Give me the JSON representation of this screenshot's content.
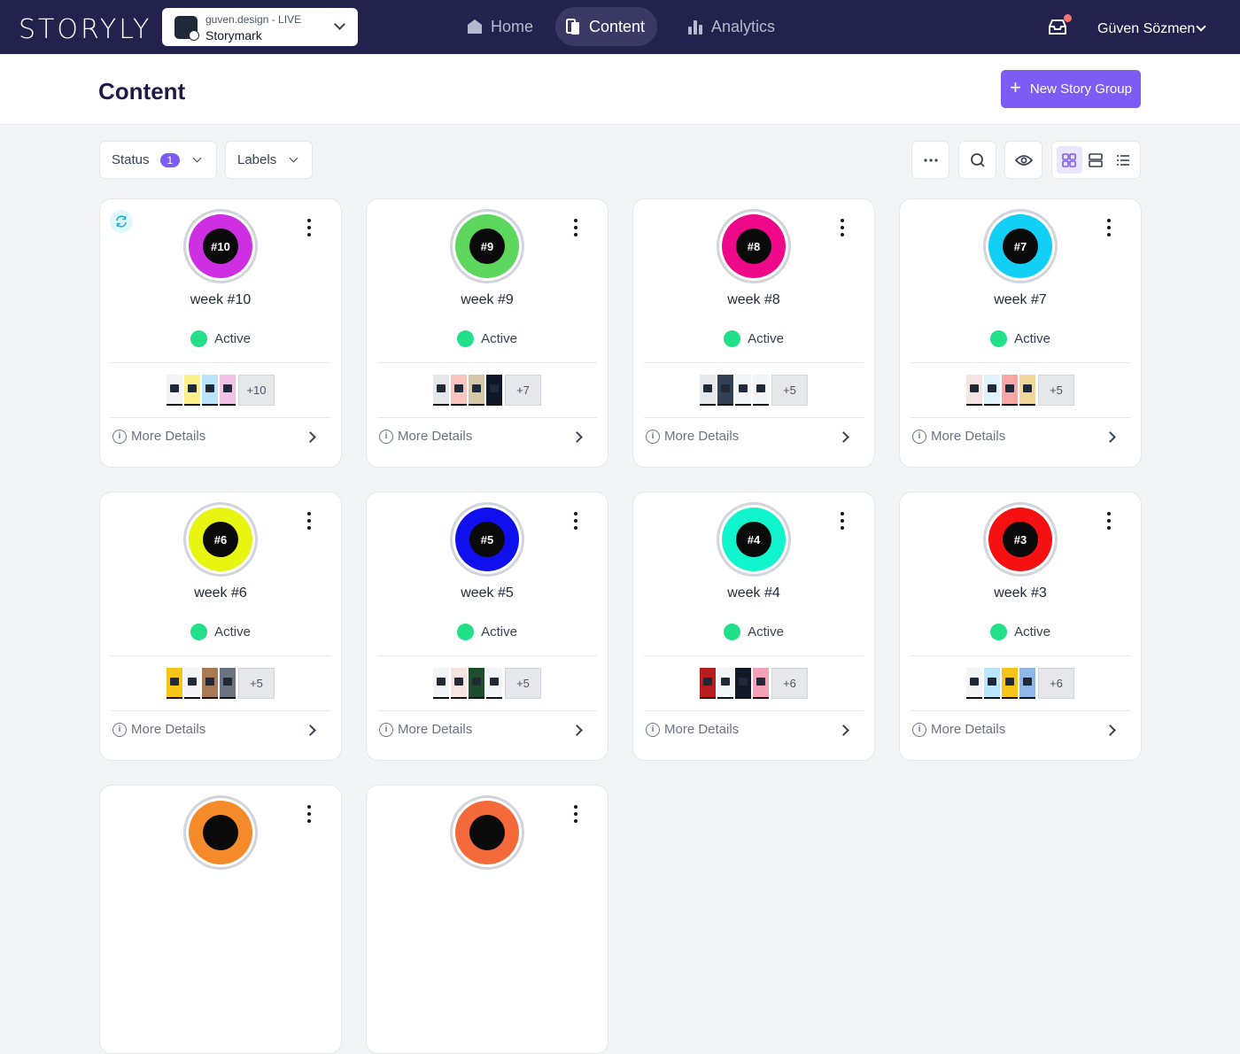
{
  "app": {
    "logo": "STORYLY",
    "selector_line1": "guven.design - LIVE",
    "selector_line2": "Storymark"
  },
  "nav": [
    {
      "label": "Home",
      "icon": "home-icon",
      "active": false
    },
    {
      "label": "Content",
      "icon": "content-icon",
      "active": true
    },
    {
      "label": "Analytics",
      "icon": "analytics-icon",
      "active": false
    }
  ],
  "user": {
    "name": "Güven Sözmen"
  },
  "page": {
    "title": "Content",
    "new_button": "New Story Group"
  },
  "filters": {
    "status_label": "Status",
    "status_count": "1",
    "labels_label": "Labels"
  },
  "cards": [
    {
      "tag": "#10",
      "name": "week #10",
      "status": "Active",
      "color": "#cf2fe3",
      "thumbs": [
        "#f3f4f6",
        "#fef08a",
        "#bae6fd",
        "#f5c2e7"
      ],
      "more": "+10",
      "details": "More Details",
      "sync": true
    },
    {
      "tag": "#9",
      "name": "week #9",
      "status": "Active",
      "color": "#5cd65c",
      "thumbs": [
        "#e5e7eb",
        "#f8c4bd",
        "#d6c7a8",
        "#0f172a"
      ],
      "more": "+7",
      "details": "More Details"
    },
    {
      "tag": "#8",
      "name": "week #8",
      "status": "Active",
      "color": "#f0088a",
      "thumbs": [
        "#e5e7eb",
        "#334155",
        "#f3f4f6",
        "#f3f4f6"
      ],
      "more": "+5",
      "details": "More Details"
    },
    {
      "tag": "#7",
      "name": "week #7",
      "status": "Active",
      "color": "#12d0f5",
      "thumbs": [
        "#f5e4e0",
        "#e0f2fe",
        "#fca5a5",
        "#f2d79c"
      ],
      "more": "+5",
      "details": "More Details"
    },
    {
      "tag": "#6",
      "name": "week #6",
      "status": "Active",
      "color": "#e8f511",
      "thumbs": [
        "#f5c518",
        "#f3f4f6",
        "#a87954",
        "#6b7280"
      ],
      "more": "+5",
      "details": "More Details"
    },
    {
      "tag": "#5",
      "name": "week #5",
      "status": "Active",
      "color": "#1010ee",
      "thumbs": [
        "#f3f4f6",
        "#f5e4e0",
        "#1e4d2b",
        "#f3f4f6"
      ],
      "more": "+5",
      "details": "More Details"
    },
    {
      "tag": "#4",
      "name": "week #4",
      "status": "Active",
      "color": "#11f5cf",
      "thumbs": [
        "#b91c1c",
        "#f3f4f6",
        "#111827",
        "#f4a0b5"
      ],
      "more": "+6",
      "details": "More Details"
    },
    {
      "tag": "#3",
      "name": "week #3",
      "status": "Active",
      "color": "#f51111",
      "thumbs": [
        "#f3f4f6",
        "#bae6fd",
        "#f5c518",
        "#8fb7e8"
      ],
      "more": "+6",
      "details": "More Details"
    },
    {
      "tag": "",
      "name": "",
      "status": "",
      "color": "#f58a2a",
      "thumbs": [],
      "more": "",
      "details": ""
    },
    {
      "tag": "",
      "name": "",
      "status": "",
      "color": "#f56a3a",
      "thumbs": [],
      "more": "",
      "details": ""
    }
  ]
}
